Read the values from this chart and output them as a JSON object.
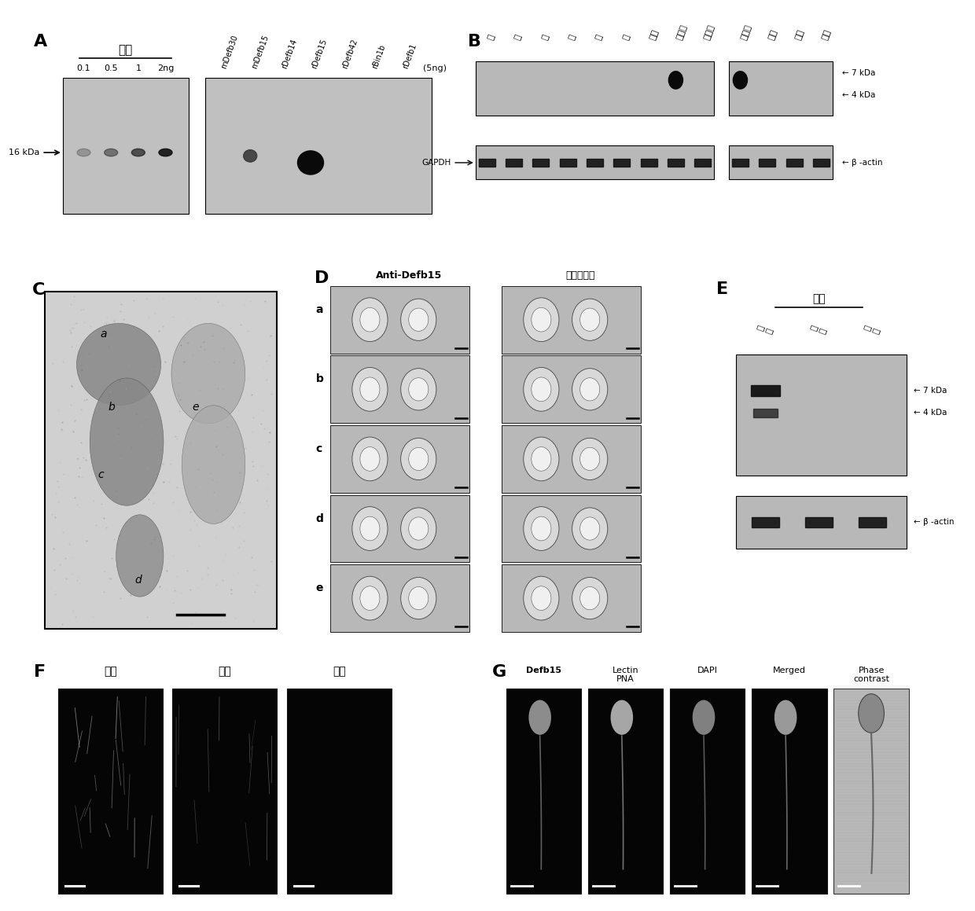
{
  "panel_A": {
    "label": "A",
    "title_cn": "抗原",
    "concentrations": [
      "0.1",
      "0.5",
      "1",
      "2ng"
    ],
    "marker": "16 kDa",
    "dot_labels": [
      "mDefb30",
      "mDefb15",
      "rDefb14",
      "rDefb15",
      "rDefb42",
      "rBin1b",
      "rDefb1"
    ],
    "dot_label2": "(5ng)"
  },
  "panel_B": {
    "label": "B",
    "tissue_labels_left": [
      "脑",
      "心",
      "肾",
      "脏",
      "肝",
      "肠",
      "睾丸",
      "附睾腺",
      "输精管"
    ],
    "tissue_labels_right": [
      "附睾丸",
      "头部",
      "体部",
      "尾部"
    ],
    "gapdh_label": "GAPDH",
    "actin_label": "β -actin"
  },
  "panel_C": {
    "label": "C",
    "region_labels": [
      "a",
      "b",
      "c",
      "d",
      "e"
    ]
  },
  "panel_D": {
    "label": "D",
    "anti_label": "Anti-Defb15",
    "pre_label": "免疫前血清",
    "row_labels": [
      "a",
      "b",
      "c",
      "d",
      "e"
    ]
  },
  "panel_E": {
    "label": "E",
    "title_cn": "精子",
    "col_labels": [
      "精\n头",
      "精\n体",
      "精\n尾"
    ],
    "actin_label": "β -actin"
  },
  "panel_F": {
    "label": "F",
    "col_labels": [
      "头部",
      "体部",
      "尾部"
    ]
  },
  "panel_G": {
    "label": "G",
    "col_labels": [
      "Defb15",
      "Lectin\nPNA",
      "DAPI",
      "Merged",
      "Phase\ncontrast"
    ]
  },
  "white": "#ffffff",
  "blot_bg": "#c0c0c0",
  "blot_bg2": "#b8b8b8"
}
